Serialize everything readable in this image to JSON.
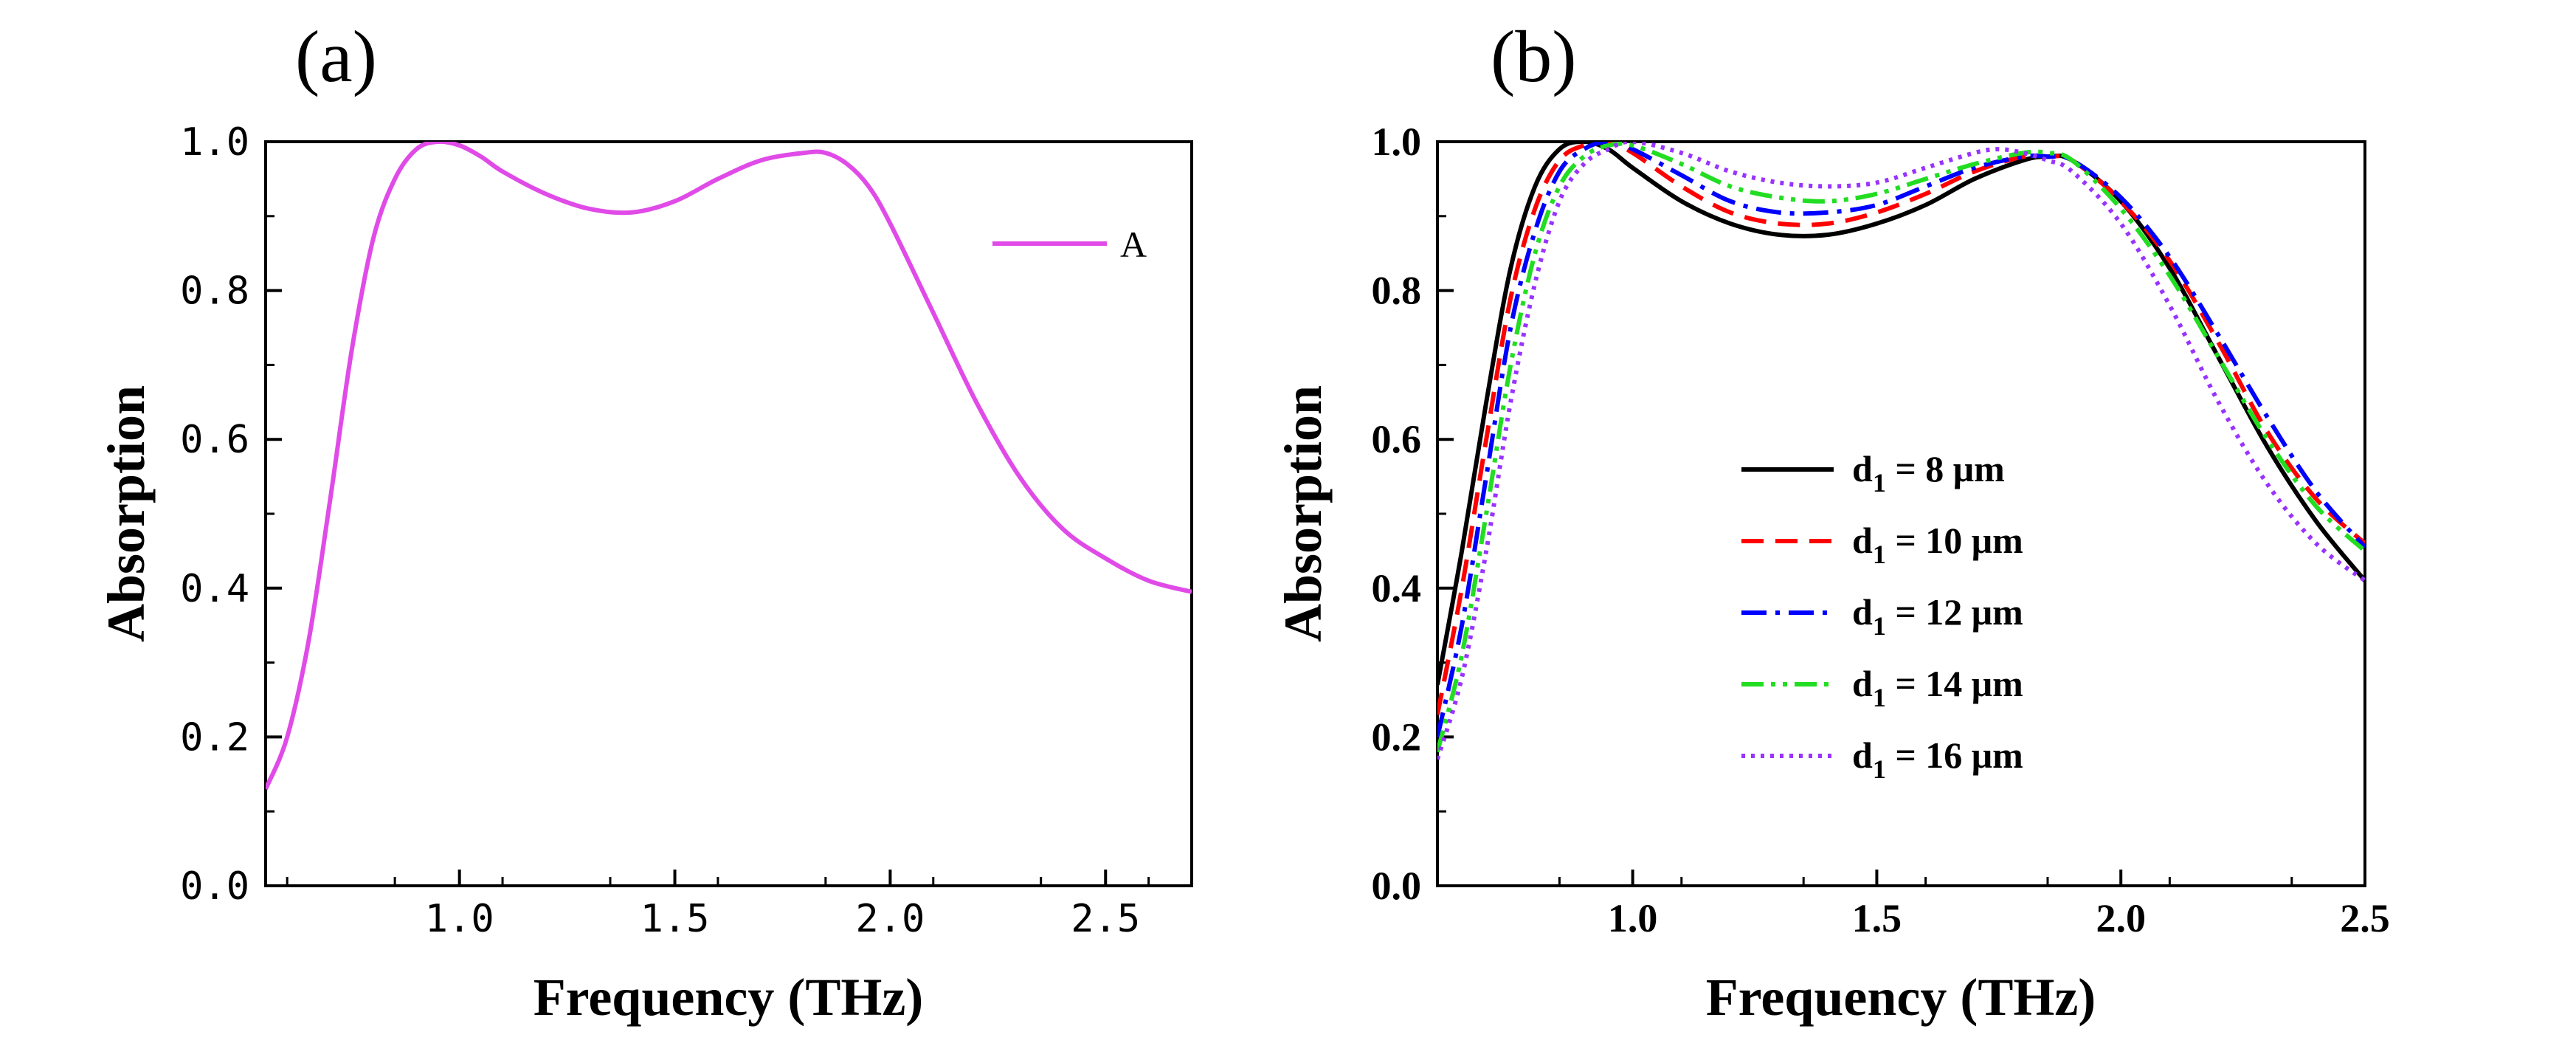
{
  "chart_data": [
    {
      "panel_label": "(a)",
      "type": "line",
      "xlabel": "Frequency (THz)",
      "ylabel": "Absorption",
      "xlim": [
        0.55,
        2.7
      ],
      "ylim": [
        0.0,
        1.0
      ],
      "xticks": [
        1.0,
        1.5,
        2.0,
        2.5
      ],
      "xtick_labels": [
        "1.0",
        "1.5",
        "2.0",
        "2.5"
      ],
      "yticks": [
        0.0,
        0.2,
        0.4,
        0.6,
        0.8,
        1.0
      ],
      "ytick_labels": [
        "0.0",
        "0.2",
        "0.4",
        "0.6",
        "0.8",
        "1.0"
      ],
      "grid": false,
      "legend_position": "top-right",
      "series": [
        {
          "name": "A",
          "color": "#E04BE8",
          "dash": "solid",
          "x": [
            0.55,
            0.6,
            0.65,
            0.7,
            0.75,
            0.8,
            0.85,
            0.9,
            0.95,
            1.0,
            1.05,
            1.1,
            1.2,
            1.3,
            1.4,
            1.5,
            1.6,
            1.7,
            1.8,
            1.85,
            1.9,
            1.95,
            2.0,
            2.1,
            2.2,
            2.3,
            2.4,
            2.5,
            2.6,
            2.7
          ],
          "y": [
            0.13,
            0.2,
            0.33,
            0.52,
            0.72,
            0.87,
            0.95,
            0.99,
            1.0,
            0.995,
            0.98,
            0.96,
            0.93,
            0.91,
            0.905,
            0.92,
            0.95,
            0.975,
            0.985,
            0.985,
            0.97,
            0.94,
            0.89,
            0.77,
            0.65,
            0.55,
            0.48,
            0.44,
            0.41,
            0.395
          ]
        }
      ]
    },
    {
      "panel_label": "(b)",
      "type": "line",
      "xlabel": "Frequency (THz)",
      "ylabel": "Absorption",
      "xlim": [
        0.6,
        2.5
      ],
      "ylim": [
        0.0,
        1.0
      ],
      "xticks": [
        1.0,
        1.5,
        2.0,
        2.5
      ],
      "xtick_labels": [
        "1.0",
        "1.5",
        "2.0",
        "2.5"
      ],
      "yticks": [
        0.0,
        0.2,
        0.4,
        0.6,
        0.8,
        1.0
      ],
      "ytick_labels": [
        "0.0",
        "0.2",
        "0.4",
        "0.6",
        "0.8",
        "1.0"
      ],
      "grid": false,
      "legend_position": "center",
      "series": [
        {
          "name": "d1 = 8 μm",
          "label_main": "d",
          "label_sub": "1",
          "label_rest": " = 8 μm",
          "color": "#000000",
          "dash": "solid",
          "x": [
            0.6,
            0.65,
            0.7,
            0.75,
            0.8,
            0.85,
            0.9,
            0.95,
            1.0,
            1.1,
            1.2,
            1.3,
            1.4,
            1.5,
            1.6,
            1.7,
            1.8,
            1.85,
            1.9,
            2.0,
            2.1,
            2.2,
            2.3,
            2.4,
            2.5
          ],
          "y": [
            0.27,
            0.45,
            0.65,
            0.83,
            0.94,
            0.99,
            1.0,
            0.99,
            0.965,
            0.92,
            0.89,
            0.875,
            0.875,
            0.89,
            0.915,
            0.95,
            0.975,
            0.98,
            0.975,
            0.92,
            0.83,
            0.71,
            0.59,
            0.49,
            0.41
          ]
        },
        {
          "name": "d1 = 10 μm",
          "label_main": "d",
          "label_sub": "1",
          "label_rest": " = 10 μm",
          "color": "#FF0000",
          "dash": "dashed",
          "x": [
            0.6,
            0.65,
            0.7,
            0.75,
            0.8,
            0.85,
            0.9,
            0.95,
            1.0,
            1.1,
            1.2,
            1.3,
            1.4,
            1.5,
            1.6,
            1.7,
            1.8,
            1.85,
            1.9,
            2.0,
            2.1,
            2.2,
            2.3,
            2.4,
            2.5
          ],
          "y": [
            0.23,
            0.4,
            0.6,
            0.79,
            0.91,
            0.975,
            0.995,
            1.0,
            0.985,
            0.94,
            0.905,
            0.89,
            0.89,
            0.905,
            0.93,
            0.96,
            0.98,
            0.98,
            0.975,
            0.92,
            0.84,
            0.73,
            0.61,
            0.52,
            0.46
          ]
        },
        {
          "name": "d1 = 12 μm",
          "label_main": "d",
          "label_sub": "1",
          "label_rest": " = 12 μm",
          "color": "#0000FF",
          "dash": "dashdot",
          "x": [
            0.6,
            0.65,
            0.7,
            0.75,
            0.8,
            0.85,
            0.9,
            0.95,
            1.0,
            1.1,
            1.2,
            1.3,
            1.4,
            1.5,
            1.6,
            1.7,
            1.8,
            1.85,
            1.9,
            2.0,
            2.1,
            2.2,
            2.3,
            2.4,
            2.5
          ],
          "y": [
            0.2,
            0.35,
            0.55,
            0.75,
            0.88,
            0.96,
            0.99,
            1.0,
            0.99,
            0.955,
            0.92,
            0.905,
            0.905,
            0.915,
            0.94,
            0.965,
            0.98,
            0.98,
            0.975,
            0.925,
            0.845,
            0.74,
            0.63,
            0.53,
            0.455
          ]
        },
        {
          "name": "d1 = 14 μm",
          "label_main": "d",
          "label_sub": "1",
          "label_rest": " = 14 μm",
          "color": "#22DD22",
          "dash": "dashdotdot",
          "x": [
            0.6,
            0.65,
            0.7,
            0.75,
            0.8,
            0.85,
            0.9,
            0.95,
            1.0,
            1.1,
            1.2,
            1.3,
            1.4,
            1.5,
            1.6,
            1.7,
            1.8,
            1.85,
            1.9,
            2.0,
            2.1,
            2.2,
            2.3,
            2.4,
            2.5
          ],
          "y": [
            0.18,
            0.31,
            0.5,
            0.7,
            0.85,
            0.94,
            0.98,
            0.995,
            0.995,
            0.97,
            0.94,
            0.925,
            0.92,
            0.93,
            0.95,
            0.97,
            0.985,
            0.985,
            0.975,
            0.91,
            0.82,
            0.71,
            0.6,
            0.51,
            0.45
          ]
        },
        {
          "name": "d1 = 16 μm",
          "label_main": "d",
          "label_sub": "1",
          "label_rest": " = 16 μm",
          "color": "#9933FF",
          "dash": "dotted",
          "x": [
            0.6,
            0.65,
            0.7,
            0.75,
            0.8,
            0.85,
            0.9,
            0.95,
            1.0,
            1.1,
            1.2,
            1.3,
            1.4,
            1.5,
            1.6,
            1.7,
            1.75,
            1.8,
            1.85,
            1.9,
            2.0,
            2.1,
            2.2,
            2.3,
            2.4,
            2.5
          ],
          "y": [
            0.17,
            0.28,
            0.45,
            0.65,
            0.81,
            0.92,
            0.97,
            0.99,
            1.0,
            0.985,
            0.96,
            0.945,
            0.94,
            0.945,
            0.965,
            0.985,
            0.99,
            0.985,
            0.975,
            0.96,
            0.89,
            0.78,
            0.65,
            0.54,
            0.46,
            0.41
          ]
        }
      ]
    }
  ]
}
